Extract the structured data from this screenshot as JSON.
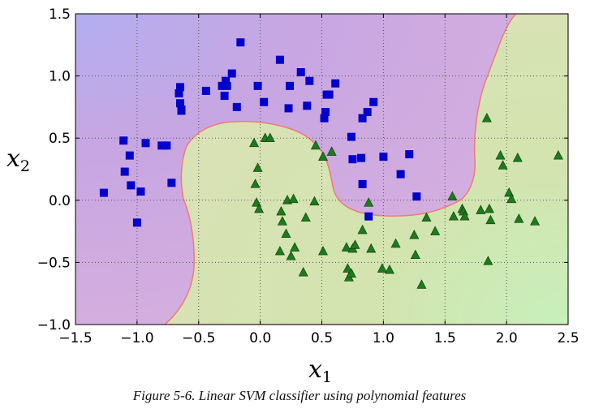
{
  "caption": "Figure 5-6. Linear SVM classifier using polynomial features",
  "colors": {
    "class0_marker": "#0000cc",
    "class1_marker": "#1d7a1d",
    "class0_region": "#d0a8e0",
    "class1_region": "#d3e4b0",
    "boundary": "#f07a7a"
  },
  "chart_data": {
    "type": "scatter",
    "title": "",
    "xlabel": "x",
    "xlabel_sub": "1",
    "ylabel": "x",
    "ylabel_sub": "2",
    "xlim": [
      -1.5,
      2.5
    ],
    "ylim": [
      -1.0,
      1.5
    ],
    "grid": true,
    "xticks": [
      -1.5,
      -1.0,
      -0.5,
      0.0,
      0.5,
      1.0,
      1.5,
      2.0,
      2.5
    ],
    "xtick_labels": [
      "−1.5",
      "−1.0",
      "−0.5",
      "0.0",
      "0.5",
      "1.0",
      "1.5",
      "2.0",
      "2.5"
    ],
    "yticks": [
      -1.0,
      -0.5,
      0.0,
      0.5,
      1.0,
      1.5
    ],
    "ytick_labels": [
      "−1.0",
      "−0.5",
      "0.0",
      "0.5",
      "1.0",
      "1.5"
    ],
    "series": [
      {
        "marker": "square",
        "points": [
          [
            -1.27,
            0.06
          ],
          [
            -1.11,
            0.48
          ],
          [
            -1.1,
            0.23
          ],
          [
            -1.06,
            0.36
          ],
          [
            -1.05,
            0.12
          ],
          [
            -1.0,
            -0.18
          ],
          [
            -0.97,
            0.07
          ],
          [
            -0.93,
            0.46
          ],
          [
            -0.8,
            0.44
          ],
          [
            -0.76,
            0.44
          ],
          [
            -0.72,
            0.14
          ],
          [
            -0.66,
            0.86
          ],
          [
            -0.65,
            0.91
          ],
          [
            -0.65,
            0.78
          ],
          [
            -0.64,
            0.73
          ],
          [
            -0.64,
            0.72
          ],
          [
            -0.44,
            0.88
          ],
          [
            -0.31,
            0.92
          ],
          [
            -0.29,
            0.84
          ],
          [
            -0.28,
            0.96
          ],
          [
            -0.27,
            0.92
          ],
          [
            -0.23,
            1.02
          ],
          [
            -0.19,
            0.75
          ],
          [
            -0.16,
            1.27
          ],
          [
            -0.02,
            0.92
          ],
          [
            0.03,
            0.79
          ],
          [
            0.16,
            1.13
          ],
          [
            0.23,
            0.74
          ],
          [
            0.24,
            0.92
          ],
          [
            0.33,
            1.03
          ],
          [
            0.38,
            0.76
          ],
          [
            0.4,
            0.96
          ],
          [
            0.52,
            0.66
          ],
          [
            0.53,
            0.71
          ],
          [
            0.54,
            0.85
          ],
          [
            0.56,
            0.85
          ],
          [
            0.61,
            0.94
          ],
          [
            0.74,
            0.51
          ],
          [
            0.75,
            0.33
          ],
          [
            0.82,
            0.34
          ],
          [
            0.83,
            0.66
          ],
          [
            0.83,
            0.13
          ],
          [
            0.87,
            0.71
          ],
          [
            0.88,
            -0.13
          ],
          [
            0.92,
            0.79
          ],
          [
            1.0,
            0.35
          ],
          [
            1.14,
            0.21
          ],
          [
            1.21,
            0.37
          ],
          [
            1.27,
            0.03
          ]
        ]
      },
      {
        "marker": "triangle",
        "points": [
          [
            -0.05,
            0.46
          ],
          [
            -0.04,
            0.13
          ],
          [
            -0.03,
            -0.02
          ],
          [
            -0.02,
            0.26
          ],
          [
            -0.01,
            -0.07
          ],
          [
            0.04,
            0.5
          ],
          [
            0.08,
            0.5
          ],
          [
            0.16,
            -0.41
          ],
          [
            0.17,
            -0.09
          ],
          [
            0.18,
            -0.17
          ],
          [
            0.21,
            -0.27
          ],
          [
            0.22,
            0.0
          ],
          [
            0.25,
            -0.45
          ],
          [
            0.27,
            0.01
          ],
          [
            0.28,
            -0.38
          ],
          [
            0.35,
            -0.58
          ],
          [
            0.37,
            -0.14
          ],
          [
            0.44,
            -0.01
          ],
          [
            0.45,
            0.44
          ],
          [
            0.51,
            -0.41
          ],
          [
            0.51,
            0.35
          ],
          [
            0.58,
            0.39
          ],
          [
            0.7,
            -0.38
          ],
          [
            0.71,
            -0.55
          ],
          [
            0.72,
            -0.62
          ],
          [
            0.74,
            -0.59
          ],
          [
            0.75,
            -0.39
          ],
          [
            0.77,
            -0.36
          ],
          [
            0.83,
            -0.24
          ],
          [
            0.88,
            -0.02
          ],
          [
            0.9,
            -0.39
          ],
          [
            0.99,
            -0.55
          ],
          [
            1.05,
            -0.56
          ],
          [
            1.1,
            -0.35
          ],
          [
            1.25,
            -0.28
          ],
          [
            1.26,
            -0.44
          ],
          [
            1.31,
            -0.68
          ],
          [
            1.35,
            -0.14
          ],
          [
            1.42,
            -0.25
          ],
          [
            1.56,
            0.03
          ],
          [
            1.57,
            -0.13
          ],
          [
            1.64,
            -0.07
          ],
          [
            1.65,
            -0.09
          ],
          [
            1.66,
            -0.13
          ],
          [
            1.79,
            -0.08
          ],
          [
            1.84,
            0.66
          ],
          [
            1.85,
            -0.49
          ],
          [
            1.86,
            -0.07
          ],
          [
            1.87,
            -0.16
          ],
          [
            1.95,
            0.36
          ],
          [
            1.97,
            0.28
          ],
          [
            2.02,
            0.06
          ],
          [
            2.04,
            0.01
          ],
          [
            2.09,
            0.34
          ],
          [
            2.1,
            -0.15
          ],
          [
            2.23,
            -0.17
          ],
          [
            2.42,
            0.36
          ]
        ]
      }
    ]
  }
}
